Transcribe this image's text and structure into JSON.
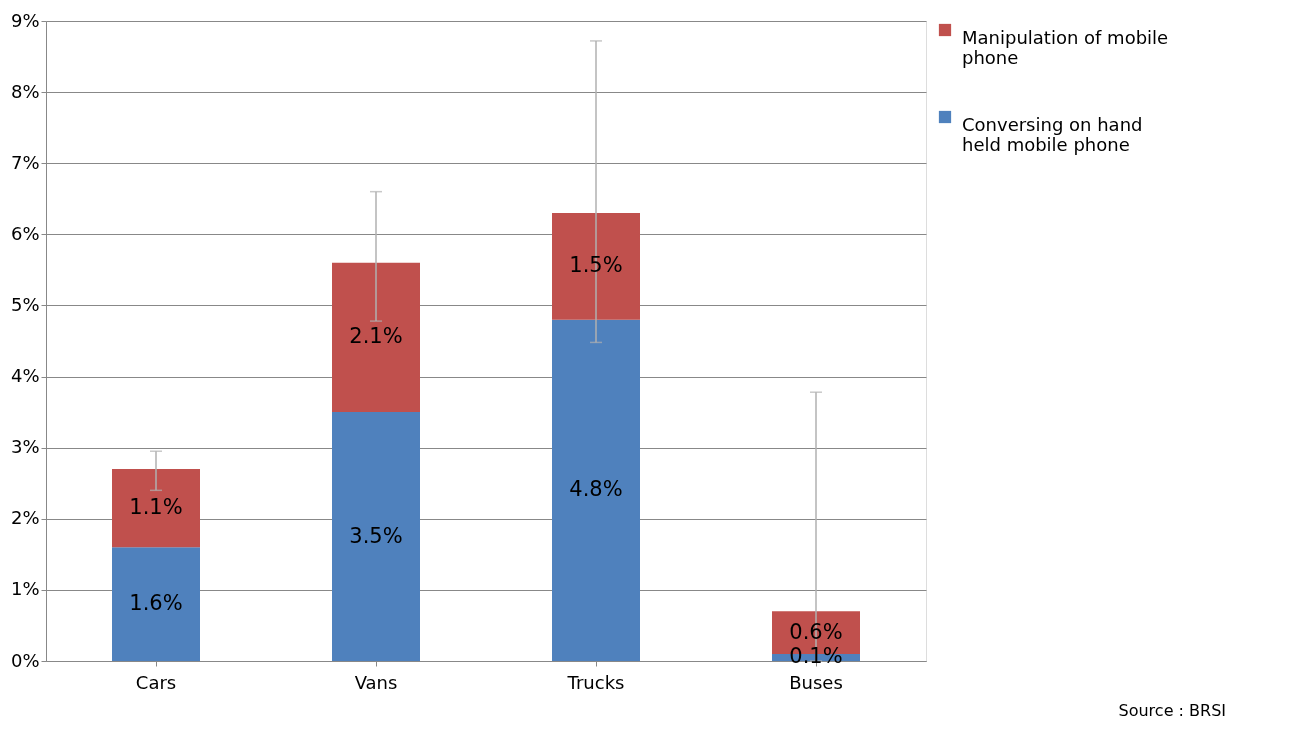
{
  "chart_data": {
    "type": "bar",
    "stacked": true,
    "categories": [
      "Cars",
      "Vans",
      "Trucks",
      "Buses"
    ],
    "series": [
      {
        "name": "Conversing on hand held mobile phone",
        "color": "#4f81bd",
        "values": [
          1.6,
          3.5,
          4.8,
          0.1
        ],
        "value_labels": [
          "1.6%",
          "3.5%",
          "4.8%",
          "0.1%"
        ]
      },
      {
        "name": "Manipulation of mobile phone",
        "color": "#c0504d",
        "values": [
          1.1,
          2.1,
          1.5,
          0.6
        ],
        "value_labels": [
          "1.1%",
          "2.1%",
          "1.5%",
          "0.6%"
        ],
        "errors": [
          [
            2.4,
            2.95
          ],
          [
            4.78,
            6.6
          ],
          [
            4.48,
            8.72
          ],
          [
            0.0,
            3.78
          ]
        ]
      }
    ],
    "ylim": [
      0,
      9
    ],
    "yticks": [
      {
        "value": 0,
        "label": "0%"
      },
      {
        "value": 1,
        "label": "1%"
      },
      {
        "value": 2,
        "label": "2%"
      },
      {
        "value": 3,
        "label": "3%"
      },
      {
        "value": 4,
        "label": "4%"
      },
      {
        "value": 5,
        "label": "5%"
      },
      {
        "value": 6,
        "label": "6%"
      },
      {
        "value": 7,
        "label": "7%"
      },
      {
        "value": 8,
        "label": "8%"
      },
      {
        "value": 9,
        "label": "9%"
      }
    ],
    "grid": "y",
    "legend": "right",
    "annotations": [
      "Source : BRSI"
    ]
  }
}
